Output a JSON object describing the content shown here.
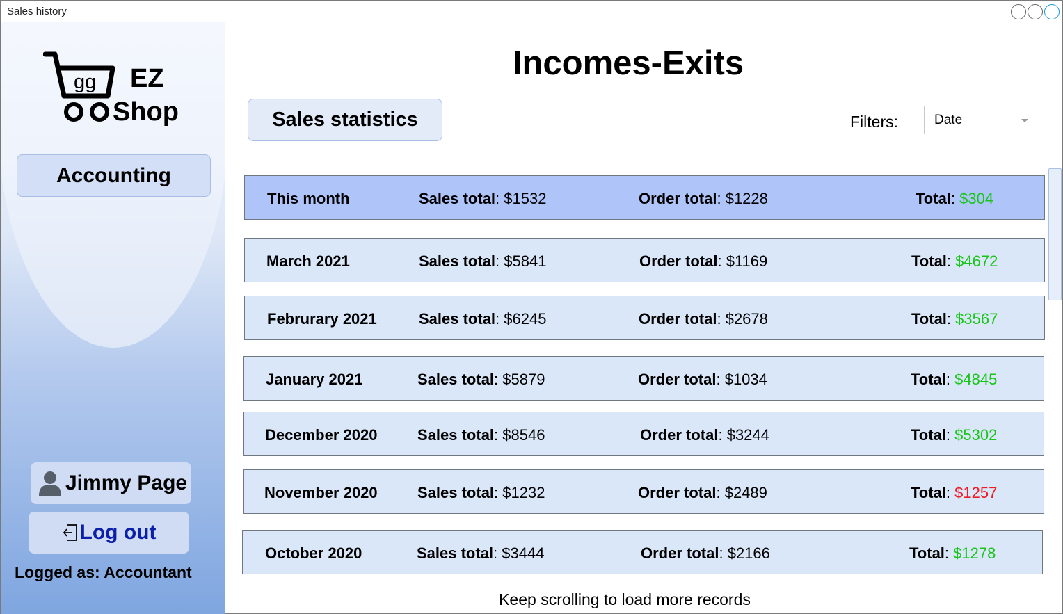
{
  "window": {
    "title": "Sales history"
  },
  "logo": {
    "icon_text": "gg",
    "line1": "EZ",
    "line2": "Shop"
  },
  "sidebar": {
    "nav_label": "Accounting",
    "user_name": "Jimmy Page",
    "logout_label": "Log out",
    "logged_as": "Logged as: Accountant"
  },
  "main": {
    "title": "Incomes-Exits",
    "stats_button": "Sales statistics",
    "filters_label": "Filters:",
    "filter_value": "Date",
    "footer_note": "Keep scrolling to load more records"
  },
  "labels": {
    "sales": "Sales total",
    "order": "Order total",
    "total": "Total",
    "sep": ": "
  },
  "records": [
    {
      "period": "This month",
      "sales": "$1532",
      "order": "$1228",
      "total": "$304",
      "status": "positive"
    },
    {
      "period": "March 2021",
      "sales": "$5841",
      "order": "$1169",
      "total": "$4672",
      "status": "positive"
    },
    {
      "period": "Februrary 2021",
      "sales": "$6245",
      "order": "$2678",
      "total": "$3567",
      "status": "positive"
    },
    {
      "period": "January 2021",
      "sales": "$5879",
      "order": "$1034",
      "total": "$4845",
      "status": "positive"
    },
    {
      "period": "December 2020",
      "sales": "$8546",
      "order": "$3244",
      "total": "$5302",
      "status": "positive"
    },
    {
      "period": "November 2020",
      "sales": "$1232",
      "order": "$2489",
      "total": "$1257",
      "status": "negative"
    },
    {
      "period": "October 2020",
      "sales": "$3444",
      "order": "$2166",
      "total": "$1278",
      "status": "positive"
    }
  ],
  "colors": {
    "positive": "#19c519",
    "negative": "#ee1b24",
    "current_row": "#afc4f9",
    "row": "#dae7f8"
  }
}
